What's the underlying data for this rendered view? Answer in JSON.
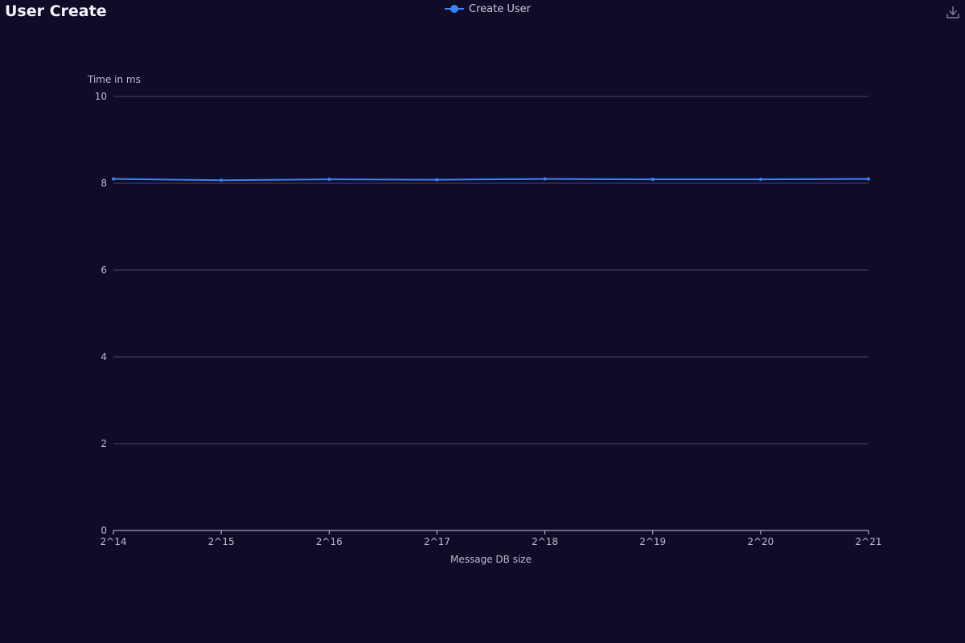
{
  "title": "User Create",
  "download_icon": "download-icon",
  "colors": {
    "background": "#100c28",
    "series": "#3b82f6",
    "grid": "#4a4660",
    "axis": "#c9c7d9",
    "text": "#bdbacd"
  },
  "chart_data": {
    "type": "line",
    "x": [
      "2^14",
      "2^15",
      "2^16",
      "2^17",
      "2^18",
      "2^19",
      "2^20",
      "2^21"
    ],
    "series": [
      {
        "name": "Create User",
        "values": [
          8.1,
          8.07,
          8.09,
          8.08,
          8.1,
          8.09,
          8.09,
          8.1
        ]
      }
    ],
    "xlabel": "Message DB size",
    "ylabel": "Time in ms",
    "ylim": [
      0,
      10
    ],
    "yticks": [
      0,
      2,
      4,
      6,
      8,
      10
    ],
    "grid": true,
    "legend": "top-center"
  }
}
